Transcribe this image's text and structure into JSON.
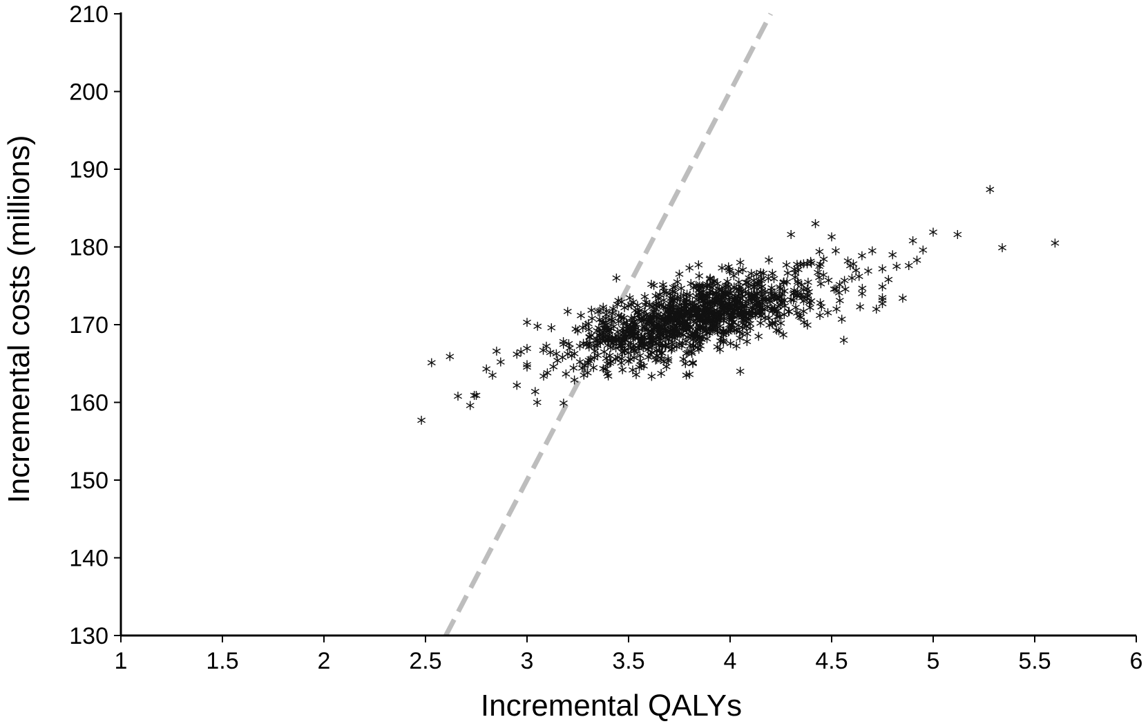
{
  "chart_data": {
    "type": "scatter",
    "title": "",
    "xlabel": "Incremental QALYs",
    "ylabel": "Incremental costs (millions)",
    "xlim": [
      1,
      6
    ],
    "ylim": [
      130,
      210
    ],
    "x_ticks": [
      1,
      1.5,
      2,
      2.5,
      3,
      3.5,
      4,
      4.5,
      5,
      5.5,
      6
    ],
    "x_tick_labels": [
      "1",
      "1.5",
      "2",
      "2.5",
      "3",
      "3.5",
      "4",
      "4.5",
      "5",
      "5.5",
      "6"
    ],
    "y_ticks": [
      130,
      140,
      150,
      160,
      170,
      180,
      190,
      200,
      210
    ],
    "y_tick_labels": [
      "130",
      "140",
      "150",
      "160",
      "170",
      "180",
      "190",
      "200",
      "210"
    ],
    "grid": false,
    "legend": "none",
    "marker": "asterisk",
    "colors": {
      "points": "#111111",
      "threshold_line": "#bdbdbd",
      "axes": "#000000"
    },
    "threshold_line": {
      "style": "dashed",
      "points": [
        [
          2.6,
          130
        ],
        [
          4.2,
          210
        ]
      ]
    },
    "series": [
      {
        "values_xy": [
          [
            2.48,
            157.7
          ],
          [
            2.53,
            165.1
          ],
          [
            2.62,
            165.9
          ],
          [
            2.66,
            160.8
          ],
          [
            2.72,
            159.6
          ],
          [
            2.74,
            160.9
          ],
          [
            2.75,
            160.9
          ],
          [
            2.8,
            164.3
          ],
          [
            2.83,
            163.5
          ],
          [
            2.85,
            166.6
          ],
          [
            2.87,
            165.2
          ],
          [
            2.95,
            166.2
          ],
          [
            2.95,
            162.2
          ],
          [
            2.97,
            166.5
          ],
          [
            3.0,
            170.3
          ],
          [
            3.04,
            161.4
          ],
          [
            3.05,
            160.0
          ],
          [
            3.1,
            163.8
          ],
          [
            3.13,
            164.6
          ],
          [
            3.18,
            159.9
          ],
          [
            3.2,
            171.7
          ],
          [
            3.28,
            163.5
          ],
          [
            3.3,
            165.1
          ],
          [
            3.36,
            168.6
          ],
          [
            3.4,
            163.4
          ],
          [
            3.44,
            176.0
          ],
          [
            3.45,
            173.1
          ],
          [
            3.47,
            164.2
          ],
          [
            3.5,
            165.3
          ],
          [
            3.5,
            168.6
          ],
          [
            3.55,
            167.0
          ],
          [
            3.6,
            169.0
          ],
          [
            3.65,
            169.8
          ],
          [
            3.7,
            172.0
          ],
          [
            3.75,
            176.5
          ],
          [
            3.8,
            177.3
          ],
          [
            3.78,
            165.0
          ],
          [
            3.8,
            163.6
          ],
          [
            3.85,
            175.0
          ],
          [
            3.9,
            172.1
          ],
          [
            3.95,
            171.6
          ],
          [
            3.95,
            166.8
          ],
          [
            4.0,
            174.4
          ],
          [
            4.05,
            164.0
          ],
          [
            4.05,
            178.0
          ],
          [
            4.1,
            171.1
          ],
          [
            4.15,
            176.7
          ],
          [
            4.2,
            174.0
          ],
          [
            4.25,
            170.2
          ],
          [
            4.3,
            181.6
          ],
          [
            4.35,
            173.8
          ],
          [
            4.4,
            177.9
          ],
          [
            4.42,
            183.0
          ],
          [
            4.45,
            172.3
          ],
          [
            4.5,
            181.3
          ],
          [
            4.52,
            179.5
          ],
          [
            4.55,
            170.7
          ],
          [
            4.56,
            168.0
          ],
          [
            4.6,
            176.0
          ],
          [
            4.65,
            174.0
          ],
          [
            4.7,
            179.5
          ],
          [
            4.75,
            172.7
          ],
          [
            4.8,
            179.0
          ],
          [
            4.85,
            173.4
          ],
          [
            4.9,
            180.8
          ],
          [
            4.95,
            179.6
          ],
          [
            5.0,
            181.9
          ],
          [
            5.12,
            181.6
          ],
          [
            5.28,
            187.4
          ],
          [
            5.34,
            179.9
          ],
          [
            5.6,
            180.5
          ],
          [
            3.22,
            166.0
          ],
          [
            3.3,
            167.5
          ],
          [
            3.42,
            168.3
          ],
          [
            3.55,
            171.3
          ],
          [
            3.62,
            168.0
          ],
          [
            3.68,
            167.3
          ],
          [
            3.72,
            170.5
          ],
          [
            3.84,
            170.8
          ],
          [
            3.9,
            175.0
          ],
          [
            3.98,
            173.9
          ],
          [
            4.02,
            172.6
          ],
          [
            4.08,
            172.4
          ],
          [
            4.12,
            174.9
          ],
          [
            4.18,
            173.2
          ],
          [
            4.22,
            172.0
          ],
          [
            4.28,
            175.5
          ],
          [
            4.32,
            176.1
          ],
          [
            4.38,
            174.6
          ],
          [
            4.46,
            176.4
          ],
          [
            4.58,
            178.2
          ],
          [
            4.62,
            177.0
          ],
          [
            4.68,
            176.9
          ],
          [
            4.72,
            172.0
          ],
          [
            4.78,
            175.8
          ],
          [
            4.82,
            177.5
          ],
          [
            4.88,
            177.6
          ],
          [
            4.92,
            178.3
          ],
          [
            3.08,
            166.7
          ],
          [
            3.12,
            169.6
          ],
          [
            3.15,
            165.4
          ],
          [
            3.25,
            169.2
          ],
          [
            3.32,
            170.8
          ],
          [
            3.38,
            166.5
          ],
          [
            3.48,
            172.2
          ],
          [
            3.52,
            170.2
          ],
          [
            3.58,
            173.6
          ],
          [
            3.66,
            165.6
          ],
          [
            3.74,
            173.3
          ],
          [
            3.86,
            168.1
          ],
          [
            3.92,
            169.6
          ],
          [
            3.96,
            177.3
          ],
          [
            4.04,
            169.9
          ],
          [
            4.14,
            168.5
          ],
          [
            4.24,
            169.2
          ],
          [
            4.34,
            171.1
          ],
          [
            4.44,
            179.4
          ],
          [
            4.54,
            173.1
          ],
          [
            4.64,
            172.3
          ]
        ],
        "cloud": {
          "count": 1000,
          "seed": 7,
          "x_mean": 3.83,
          "x_sd": 0.3,
          "cost_at_x_mean": 170.9,
          "slope": 6.1,
          "residual_sd": 2.2
        }
      }
    ]
  }
}
